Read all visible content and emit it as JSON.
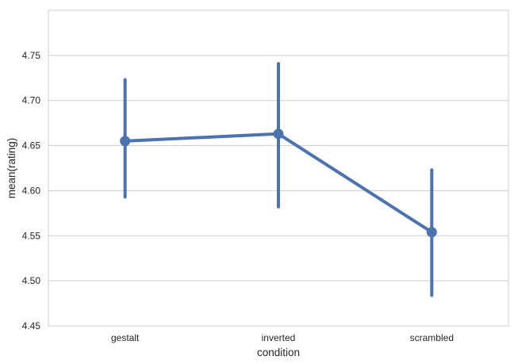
{
  "chart_data": {
    "type": "line",
    "title": "",
    "xlabel": "condition",
    "ylabel": "mean(rating)",
    "categories": [
      "gestalt",
      "inverted",
      "scrambled"
    ],
    "series": [
      {
        "values": [
          4.655,
          4.663,
          4.554
        ],
        "ci_low": [
          4.593,
          4.582,
          4.484
        ],
        "ci_high": [
          4.723,
          4.741,
          4.623
        ]
      }
    ],
    "ylim": [
      4.45,
      4.8
    ],
    "yticks": [
      "4.45",
      "4.50",
      "4.55",
      "4.60",
      "4.65",
      "4.70",
      "4.75"
    ],
    "grid": true,
    "style": "whitegrid",
    "colors": {
      "series": "#4c72b0",
      "grid": "#cccccc",
      "spine": "#cccccc"
    }
  }
}
